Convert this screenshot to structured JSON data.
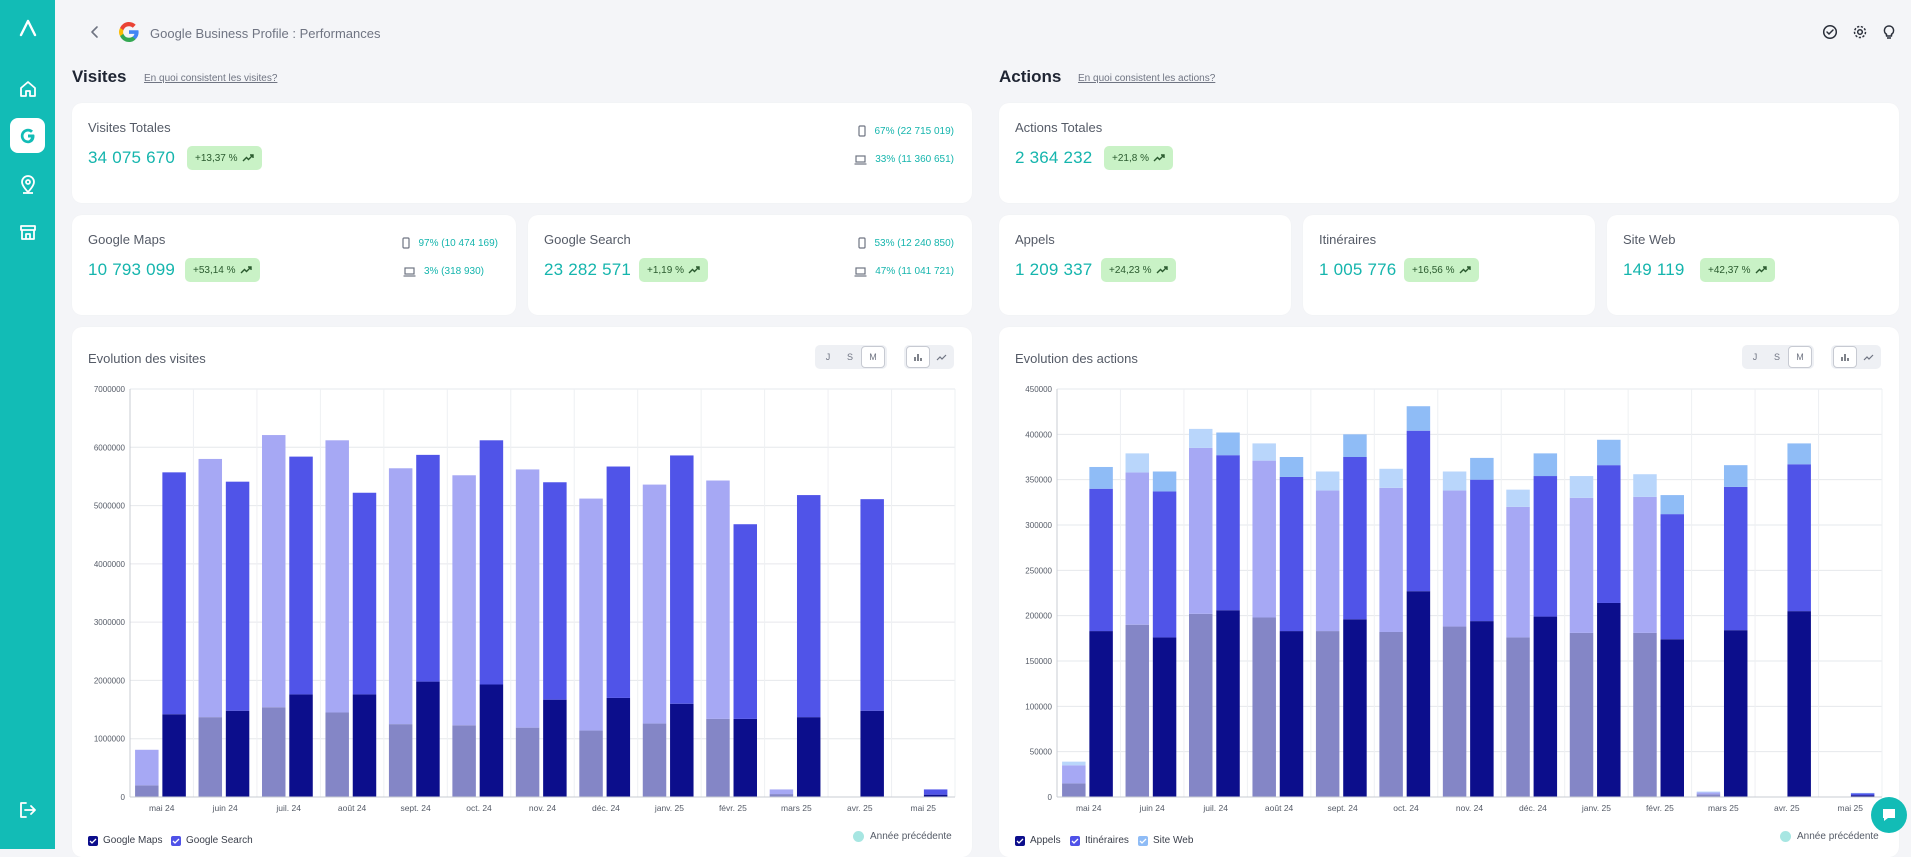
{
  "header": {
    "title": "Google Business Profile : Performances"
  },
  "visits": {
    "title": "Visites",
    "link": "En quoi consistent les visites?",
    "total": {
      "label": "Visites Totales",
      "value": "34 075 670",
      "delta": "+13,37 %",
      "mobile": "67% (22 715 019)",
      "desktop": "33% (11 360 651)"
    },
    "maps": {
      "label": "Google Maps",
      "value": "10 793 099",
      "delta": "+53,14 %",
      "mobile": "97% (10 474 169)",
      "desktop": "3% (318 930)"
    },
    "search": {
      "label": "Google Search",
      "value": "23 282 571",
      "delta": "+1,19 %",
      "mobile": "53% (12 240 850)",
      "desktop": "47% (11 041 721)"
    },
    "chart_title": "Evolution des visites",
    "legend": {
      "maps": "Google Maps",
      "search": "Google Search",
      "previous": "Année précédente"
    }
  },
  "actions": {
    "title": "Actions",
    "link": "En quoi consistent les actions?",
    "total": {
      "label": "Actions Totales",
      "value": "2 364 232",
      "delta": "+21,8 %"
    },
    "calls": {
      "label": "Appels",
      "value": "1 209 337",
      "delta": "+24,23 %"
    },
    "directions": {
      "label": "Itinéraires",
      "value": "1 005 776",
      "delta": "+16,56 %"
    },
    "website": {
      "label": "Site Web",
      "value": "149 119",
      "delta": "+42,37 %"
    },
    "chart_title": "Evolution des actions",
    "legend": {
      "calls": "Appels",
      "directions": "Itinéraires",
      "website": "Site Web",
      "previous": "Année précédente"
    }
  },
  "period_buttons": [
    "J",
    "S",
    "M"
  ],
  "colors": {
    "primary": "#12bcb6",
    "badge_bg": "#c9f2c6"
  },
  "chart_data": [
    {
      "type": "bar",
      "title": "Evolution des visites",
      "categories": [
        "mai 24",
        "juin 24",
        "juil. 24",
        "août 24",
        "sept. 24",
        "oct. 24",
        "nov. 24",
        "déc. 24",
        "janv. 25",
        "févr. 25",
        "mars 25",
        "avr. 25",
        "mai 25"
      ],
      "ylim": [
        0,
        7000000
      ],
      "yticks": [
        0,
        1000000,
        2000000,
        3000000,
        4000000,
        5000000,
        6000000,
        7000000
      ],
      "previous_year": [
        {
          "name": "Google Maps",
          "values": [
            200000,
            1370000,
            1540000,
            1450000,
            1250000,
            1230000,
            1190000,
            1140000,
            1260000,
            1340000,
            50000,
            0,
            0
          ]
        },
        {
          "name": "Google Search",
          "values": [
            610000,
            4430000,
            4670000,
            4670000,
            4390000,
            4290000,
            4430000,
            3980000,
            4100000,
            4090000,
            80000,
            0,
            0
          ]
        }
      ],
      "series": [
        {
          "name": "Google Maps",
          "values": [
            1420000,
            1480000,
            1760000,
            1760000,
            1980000,
            1930000,
            1670000,
            1700000,
            1600000,
            1340000,
            1370000,
            1480000,
            40000
          ]
        },
        {
          "name": "Google Search",
          "values": [
            4150000,
            3930000,
            4080000,
            3460000,
            3890000,
            4190000,
            3730000,
            3970000,
            4260000,
            3340000,
            3810000,
            3630000,
            90000
          ]
        }
      ]
    },
    {
      "type": "bar",
      "title": "Evolution des actions",
      "categories": [
        "mai 24",
        "juin 24",
        "juil. 24",
        "août 24",
        "sept. 24",
        "oct. 24",
        "nov. 24",
        "déc. 24",
        "janv. 25",
        "févr. 25",
        "mars 25",
        "avr. 25",
        "mai 25"
      ],
      "ylim": [
        0,
        450000
      ],
      "yticks": [
        0,
        50000,
        100000,
        150000,
        200000,
        250000,
        300000,
        350000,
        400000,
        450000
      ],
      "previous_year": [
        {
          "name": "Appels",
          "values": [
            15000,
            190000,
            202000,
            198000,
            183000,
            182000,
            188000,
            176000,
            181000,
            181000,
            3000,
            0,
            0
          ]
        },
        {
          "name": "Itinéraires",
          "values": [
            20000,
            168000,
            183000,
            173000,
            155000,
            159000,
            150000,
            144000,
            149000,
            150000,
            2000,
            0,
            0
          ]
        },
        {
          "name": "Site Web",
          "values": [
            4000,
            21000,
            21000,
            19000,
            21000,
            21000,
            21000,
            19000,
            24000,
            25000,
            1000,
            0,
            0
          ]
        }
      ],
      "series": [
        {
          "name": "Appels",
          "values": [
            183000,
            176000,
            206000,
            183000,
            196000,
            227000,
            194000,
            199000,
            214000,
            174000,
            184000,
            205000,
            2000
          ]
        },
        {
          "name": "Itinéraires",
          "values": [
            157000,
            161000,
            171000,
            170000,
            179000,
            177000,
            156000,
            155000,
            152000,
            138000,
            158000,
            162000,
            2000
          ]
        },
        {
          "name": "Site Web",
          "values": [
            24000,
            22000,
            25000,
            22000,
            25000,
            27000,
            24000,
            25000,
            28000,
            21000,
            24000,
            23000,
            500
          ]
        }
      ]
    }
  ]
}
